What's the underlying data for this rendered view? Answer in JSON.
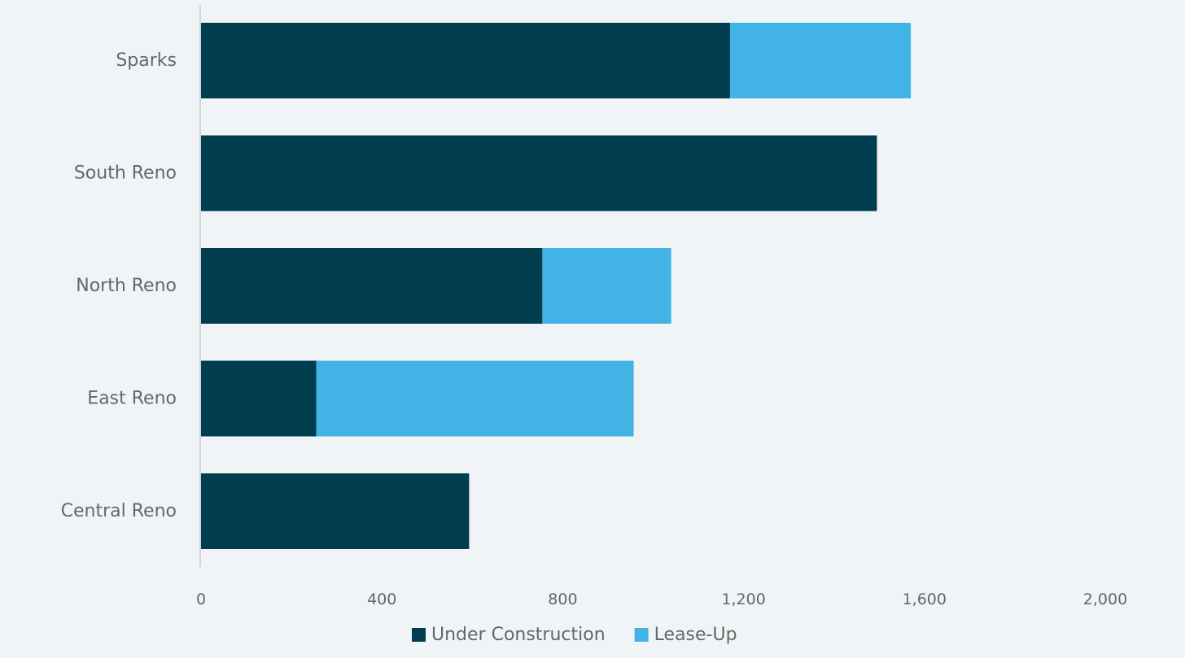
{
  "chart_data": {
    "type": "bar",
    "orientation": "horizontal",
    "stacked": true,
    "categories": [
      "Sparks",
      "South Reno",
      "North Reno",
      "East Reno",
      "Central Reno"
    ],
    "series": [
      {
        "name": "Under Construction",
        "color": "#003d4f",
        "values": [
          1170,
          1495,
          755,
          255,
          593
        ]
      },
      {
        "name": "Lease-Up",
        "color": "#41b4e5",
        "values": [
          400,
          0,
          285,
          702,
          0
        ]
      }
    ],
    "xlim": [
      0,
      2000
    ],
    "x_ticks": [
      0,
      400,
      800,
      1200,
      1600,
      2000
    ],
    "x_tick_labels": [
      "0",
      "400",
      "800",
      "1,200",
      "1,600",
      "2,000"
    ],
    "grid": false,
    "legend_position": "bottom",
    "background_color": "#f1f4f6",
    "label_color": "#666666",
    "axis_color": "#d0d4d7"
  }
}
